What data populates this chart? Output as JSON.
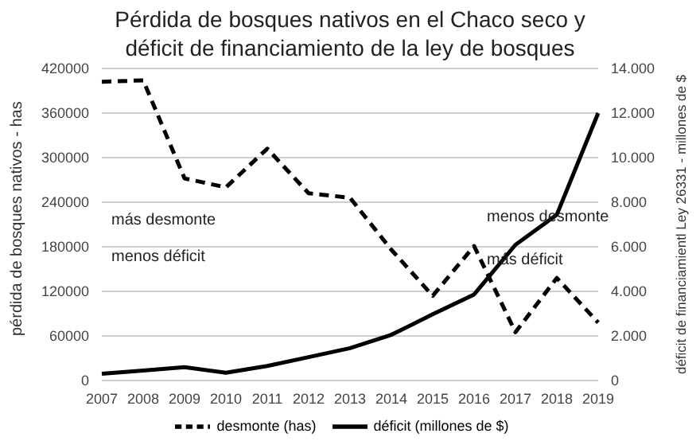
{
  "chart_data": {
    "type": "line",
    "title": "Pérdida de bosques nativos en el Chaco seco y\ndéficit de financiamiento de la ley de bosques",
    "ylabel": "pérdida de bosques nativos - has",
    "y2label": "déficit de financiamientl Ley 26331 - millones de $",
    "categories": [
      "2007",
      "2008",
      "2009",
      "2010",
      "2011",
      "2012",
      "2013",
      "2014",
      "2015",
      "2016",
      "2017",
      "2018",
      "2019"
    ],
    "series": [
      {
        "name": "desmonte (has)",
        "color": "#000000",
        "line_style": "dashed",
        "values": [
          402000,
          404000,
          272000,
          260000,
          312000,
          252000,
          246000,
          176000,
          114000,
          181000,
          65000,
          138000,
          78000
        ]
      },
      {
        "name": "déficit (millones de $)",
        "color": "#000000",
        "line_style": "solid",
        "axis": "y2",
        "values": [
          300,
          450,
          600,
          350,
          650,
          1050,
          1450,
          2050,
          2970,
          3860,
          6090,
          7440,
          12000
        ]
      }
    ],
    "ylim": [
      0,
      420000
    ],
    "yticks": [
      0,
      60000,
      120000,
      180000,
      240000,
      300000,
      360000,
      420000
    ],
    "y2lim": [
      0,
      14000
    ],
    "y2ticks": [
      {
        "value": 0,
        "label": "0"
      },
      {
        "value": 2000,
        "label": "2.000"
      },
      {
        "value": 4000,
        "label": "4.000"
      },
      {
        "value": 6000,
        "label": "6.000"
      },
      {
        "value": 8000,
        "label": "8.000"
      },
      {
        "value": 10000,
        "label": "10.000"
      },
      {
        "value": 12000,
        "label": "12.000"
      },
      {
        "value": 14000,
        "label": "14.000"
      }
    ],
    "annotations": [
      "más desmonte",
      "menos déficit",
      "menos desmonte",
      "más déficit"
    ],
    "grid": "y",
    "legend": "bottom",
    "marker": "none"
  }
}
